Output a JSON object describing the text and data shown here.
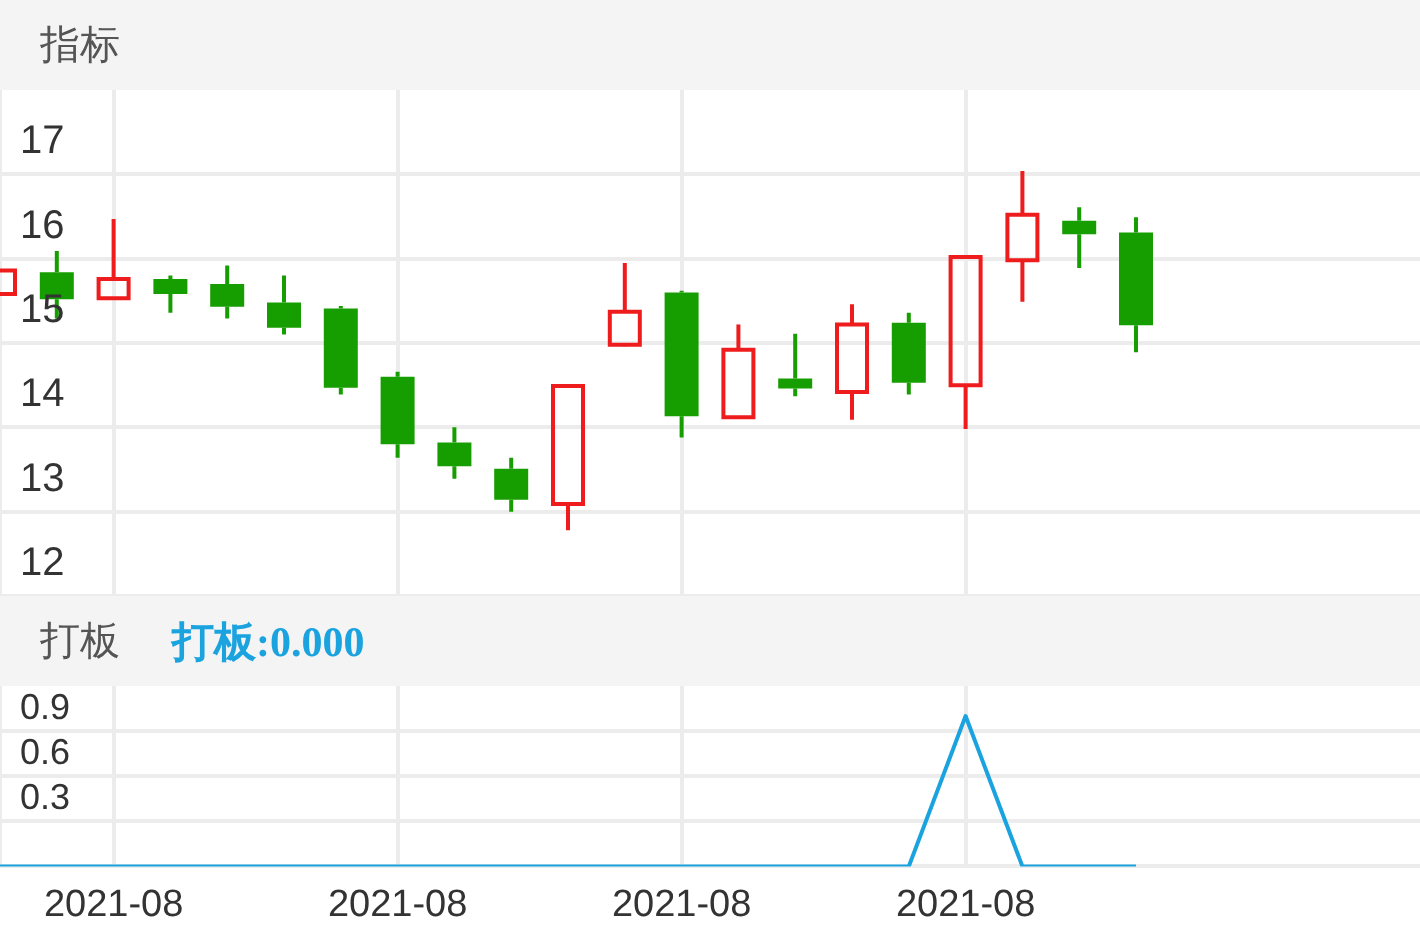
{
  "chart_data": [
    {
      "type": "candlestick",
      "title": "指标",
      "categories": [
        null,
        null,
        "2021-08",
        null,
        null,
        null,
        null,
        "2021-08",
        null,
        null,
        null,
        null,
        "2021-08",
        null,
        null,
        null,
        null,
        "2021-08",
        null,
        null,
        null,
        null,
        null,
        null,
        null,
        null
      ],
      "ohlc": [
        [
          15.58,
          15.86,
          15.58,
          15.86
        ],
        [
          15.84,
          16.09,
          15.29,
          15.52
        ],
        [
          15.53,
          16.47,
          15.53,
          15.76
        ],
        [
          15.76,
          15.8,
          15.36,
          15.58
        ],
        [
          15.7,
          15.92,
          15.29,
          15.43
        ],
        [
          15.48,
          15.8,
          15.1,
          15.18
        ],
        [
          15.41,
          15.44,
          14.39,
          14.47
        ],
        [
          14.6,
          14.66,
          13.64,
          13.8
        ],
        [
          13.82,
          14.0,
          13.39,
          13.54
        ],
        [
          13.51,
          13.64,
          13.0,
          13.14
        ],
        [
          13.09,
          14.49,
          12.78,
          14.49
        ],
        [
          14.98,
          15.95,
          14.96,
          15.37
        ],
        [
          15.6,
          15.62,
          13.88,
          14.13
        ],
        [
          14.12,
          15.22,
          14.12,
          14.92
        ],
        [
          14.58,
          15.11,
          14.37,
          14.46
        ],
        [
          14.42,
          15.46,
          14.09,
          15.22
        ],
        [
          15.24,
          15.36,
          14.39,
          14.53
        ],
        [
          14.5,
          16.02,
          13.98,
          16.02
        ],
        [
          15.98,
          17.04,
          15.49,
          16.52
        ],
        [
          16.45,
          16.61,
          15.89,
          16.29
        ],
        [
          16.31,
          16.49,
          14.89,
          15.21
        ],
        null,
        null,
        null,
        null,
        null
      ],
      "colors": [
        "#ee1c1c",
        "#169e00",
        "#ee1c1c",
        "#169e00",
        "#169e00",
        "#169e00",
        "#169e00",
        "#169e00",
        "#169e00",
        "#169e00",
        "#ee1c1c",
        "#ee1c1c",
        "#169e00",
        "#ee1c1c",
        "#169e00",
        "#ee1c1c",
        "#169e00",
        "#ee1c1c",
        "#ee1c1c",
        "#169e00",
        "#169e00",
        null,
        null,
        null,
        null,
        null
      ],
      "ylim": [
        12,
        18
      ],
      "yticks": [
        12,
        13,
        14,
        15,
        16,
        17
      ],
      "grid": true,
      "tick_labels": "y"
    },
    {
      "type": "line",
      "title": "打板",
      "categories": [
        null,
        null,
        "2021-08",
        null,
        null,
        null,
        null,
        "2021-08",
        null,
        null,
        null,
        null,
        "2021-08",
        null,
        null,
        null,
        null,
        "2021-08",
        null,
        null,
        null,
        null,
        null,
        null,
        null,
        null
      ],
      "series": [
        {
          "name": "打板:0.000",
          "color": "#1ba3df",
          "values": [
            0,
            0,
            0,
            0,
            0,
            0,
            0,
            0,
            0,
            0,
            0,
            0,
            0,
            0,
            0,
            0,
            0,
            1,
            0,
            0,
            0,
            null,
            null,
            null,
            null,
            null
          ]
        }
      ],
      "ylim": [
        0,
        1.2
      ],
      "yticks": [
        0.3,
        0.6,
        0.9
      ],
      "grid": true,
      "marker": "none"
    }
  ]
}
